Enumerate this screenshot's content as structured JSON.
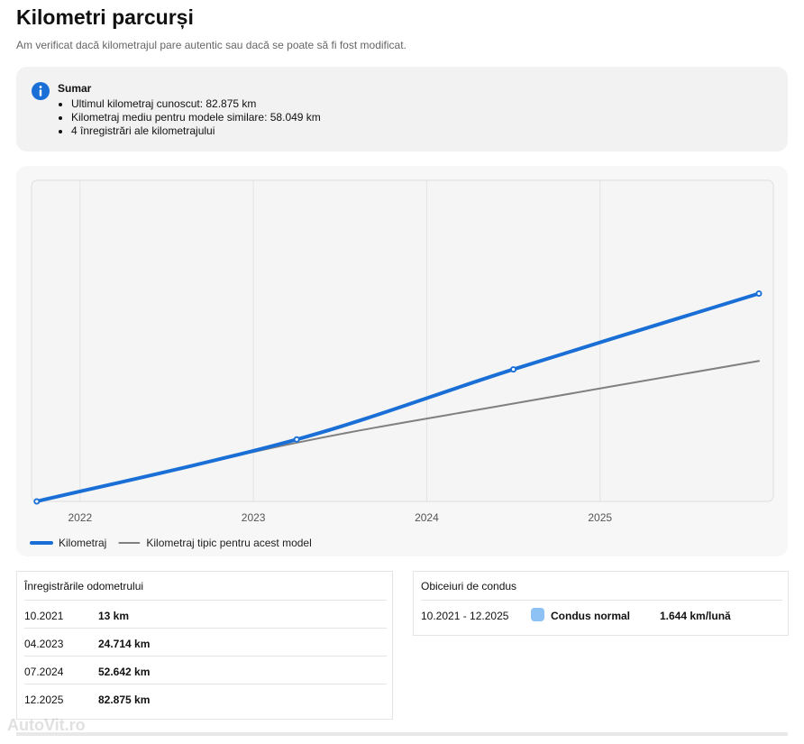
{
  "header": {
    "title": "Kilometri parcurși",
    "subtitle": "Am verificat dacă kilometrajul pare autentic sau dacă se poate să fi fost modificat."
  },
  "summary": {
    "title": "Sumar",
    "items": [
      "Ultimul kilometraj cunoscut: 82.875 km",
      "Kilometraj mediu pentru modele similare: 58.049 km",
      "4 înregistrări ale kilometrajului"
    ]
  },
  "chart_data": {
    "type": "line",
    "x": [
      "2021-10",
      "2023-04",
      "2024-07",
      "2025-12"
    ],
    "xlim": [
      2021.72,
      2026.0
    ],
    "xticks": [
      2022,
      2023,
      2024,
      2025
    ],
    "ylim": [
      0,
      128000
    ],
    "grid": true,
    "legend": "bottom-left",
    "series": [
      {
        "name": "Kilometraj",
        "color": "#1a6fd6",
        "values": [
          13,
          24714,
          52642,
          82875
        ]
      },
      {
        "name": "Kilometraj tipic pentru acest model",
        "color": "#808080",
        "values": [
          0,
          23400,
          39000,
          56000
        ]
      }
    ]
  },
  "odometer": {
    "title": "Înregistrările odometrului",
    "rows": [
      [
        "10.2021",
        "13 km"
      ],
      [
        "04.2023",
        "24.714 km"
      ],
      [
        "07.2024",
        "52.642 km"
      ],
      [
        "12.2025",
        "82.875 km"
      ]
    ]
  },
  "habits": {
    "title": "Obiceiuri de condus",
    "rows": [
      [
        "10.2021 - 12.2025",
        "Condus normal",
        "1.644 km/lună"
      ]
    ]
  },
  "watermark": "AutoVit.ro"
}
